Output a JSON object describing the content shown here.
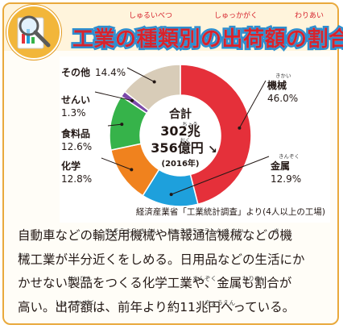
{
  "header": {
    "title": "工業の種類別の出荷額の割合",
    "title_ruby": [
      "しゅるいべつ",
      "しゅっかがく",
      "わりあい"
    ]
  },
  "chart_data": {
    "type": "pie",
    "donut": true,
    "title": "工業の種類別の出荷額の割合",
    "center": {
      "label": "合計",
      "value": "302兆",
      "value_ruby": "ちょう",
      "value2": "356億円",
      "value2_ruby": "おく",
      "trend": "↘",
      "year": "(2016年)"
    },
    "slices": [
      {
        "label": "機械",
        "ruby": "きかい",
        "value": 46.0,
        "value_text": "46.0%",
        "color": "#e5303a"
      },
      {
        "label": "金属",
        "ruby": "きんぞく",
        "value": 12.9,
        "value_text": "12.9%",
        "color": "#1ea0dc"
      },
      {
        "label": "化学",
        "ruby": "",
        "value": 12.8,
        "value_text": "12.8%",
        "color": "#f0821e"
      },
      {
        "label": "食料品",
        "ruby": "",
        "value": 12.6,
        "value_text": "12.6%",
        "color": "#36b34a"
      },
      {
        "label": "せんい",
        "ruby": "",
        "value": 1.3,
        "value_text": "1.3%",
        "color": "#7a48a8"
      },
      {
        "label": "その他",
        "ruby": "",
        "value": 14.4,
        "value_text": "14.4%",
        "color": "#d8ccb8"
      }
    ],
    "source": "経済産業省「工業統計調査」より(4人以上の工場)"
  },
  "description": {
    "lines": [
      "自動車などの輸送用機械や情報通信機械などの機",
      "械工業が半分近くをしめる。日用品などの生活にか",
      "かせない製品をつくる化学工業や、金属も割合が",
      "高い。出荷額は、前年より約11兆円へっている。"
    ],
    "ruby": [
      [
        {
          "text": "ゆ そうよう き かい",
          "after": 7
        },
        {
          "text": "じょうほうつうしん き かい",
          "after": 12
        },
        {
          "text": "き",
          "after": 20.5
        }
      ],
      [
        {
          "text": "かい",
          "after": 0
        }
      ],
      [
        {
          "text": "せいひん",
          "after": 4
        },
        {
          "text": "きんぞく",
          "after": 14
        },
        {
          "text": "わりあい",
          "after": 18
        }
      ],
      [
        {
          "text": "しゅっ か がく",
          "after": 3
        },
        {
          "text": "ちょうえん",
          "after": 15
        }
      ]
    ]
  }
}
